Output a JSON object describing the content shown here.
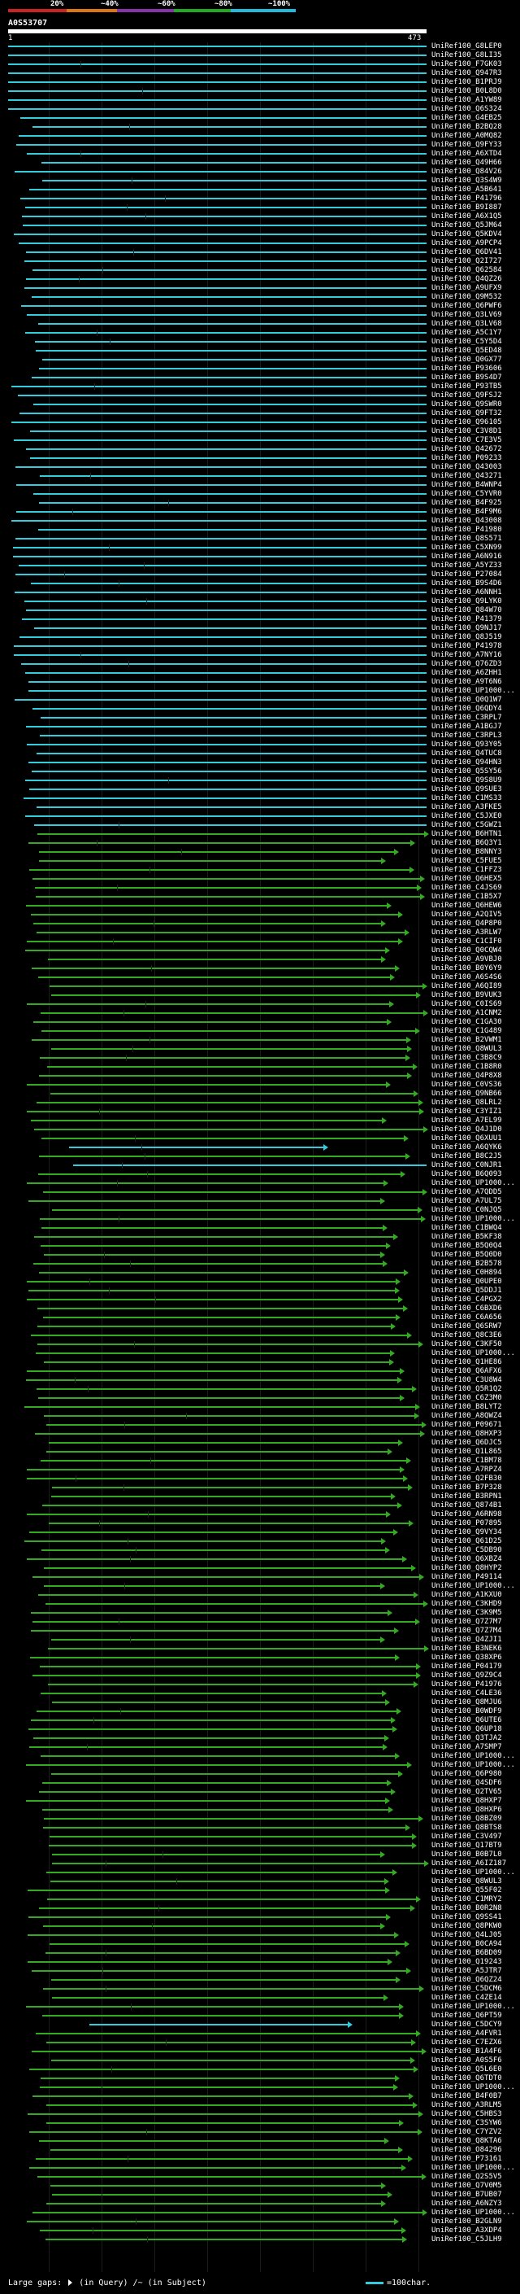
{
  "header": {
    "scale_ticks": [
      "20%",
      "~40%",
      "~60%",
      "~80%",
      "~100%"
    ],
    "scale_colors": [
      "#cc2222",
      "#dd7711",
      "#8833aa",
      "#22aa22",
      "#22bbdd"
    ],
    "query_title": "A0S53707",
    "query_start": "1",
    "query_end": "473"
  },
  "legend": {
    "large_gaps_label": "Large gaps:",
    "in_query_label": "(in Query)",
    "separator": "/~",
    "in_subject_label": "(in Subject)",
    "scale_label": "=100char."
  },
  "colors": {
    "cyan": "#33ccdd",
    "green": "#33aa22",
    "bright_green": "#44dd22"
  },
  "hits": [
    "UniRef100_G8LEP0",
    "UniRef100_G8LI35",
    "UniRef100_F7GK03",
    "UniRef100_Q947R3",
    "UniRef100_B1PRJ9",
    "UniRef100_B0L8D0",
    "UniRef100_A1YW89",
    "UniRef100_Q6S324",
    "UniRef100_G4EB25",
    "UniRef100_B2BQ28",
    "UniRef100_A0MQ82",
    "UniRef100_Q9FY33",
    "UniRef100_A6XTD4",
    "UniRef100_Q49H66",
    "UniRef100_Q84V26",
    "UniRef100_Q3S4W9",
    "UniRef100_A5B641",
    "UniRef100_P41796",
    "UniRef100_B9I887",
    "UniRef100_A6X1Q5",
    "UniRef100_Q5JM64",
    "UniRef100_Q5KDV4",
    "UniRef100_A9PCP4",
    "UniRef100_Q6DV41",
    "UniRef100_Q2I727",
    "UniRef100_Q62584",
    "UniRef100_Q4QZ26",
    "UniRef100_A9UFX9",
    "UniRef100_Q9M532",
    "UniRef100_Q6PWF6",
    "UniRef100_Q3LV69",
    "UniRef100_Q3LV68",
    "UniRef100_A5C1Y7",
    "UniRef100_C5Y5D4",
    "UniRef100_Q5ED48",
    "UniRef100_Q0GX77",
    "UniRef100_P93606",
    "UniRef100_B9S4D7",
    "UniRef100_P93TB5",
    "UniRef100_Q9FSJ2",
    "UniRef100_Q9SWR0",
    "UniRef100_Q9FT32",
    "UniRef100_Q96105",
    "UniRef100_C3V8D1",
    "UniRef100_C7E3V5",
    "UniRef100_Q42672",
    "UniRef100_P09233",
    "UniRef100_Q43003",
    "UniRef100_Q43271",
    "UniRef100_B4WNP4",
    "UniRef100_C5YVR0",
    "UniRef100_B4F925",
    "UniRef100_B4F9M6",
    "UniRef100_Q43008",
    "UniRef100_P41980",
    "UniRef100_Q8S571",
    "UniRef100_C5XN99",
    "UniRef100_A6N916",
    "UniRef100_A5YZ33",
    "UniRef100_P27084",
    "UniRef100_B9S4D6",
    "UniRef100_A6NNH1",
    "UniRef100_Q9LYK0",
    "UniRef100_Q84W70",
    "UniRef100_P41379",
    "UniRef100_Q9NJ17",
    "UniRef100_Q8J519",
    "UniRef100_P41978",
    "UniRef100_A7NY16",
    "UniRef100_Q76ZD3",
    "UniRef100_A6ZHH1",
    "UniRef100_A9T6N6",
    "UniRef100_UP1000...",
    "UniRef100_Q0Q1W7",
    "UniRef100_Q6QDY4",
    "UniRef100_C3RPL7",
    "UniRef100_A1BGJ7",
    "UniRef100_C3RPL3",
    "UniRef100_Q93Y05",
    "UniRef100_Q4TUC8",
    "UniRef100_Q94HN3",
    "UniRef100_Q5SY56",
    "UniRef100_Q9S8U9",
    "UniRef100_Q9SUE3",
    "UniRef100_C1MS33",
    "UniRef100_A3FKE5",
    "UniRef100_C5JXE0",
    "UniRef100_C5GWZ1",
    "UniRef100_B6HTN1",
    "UniRef100_B6Q3Y1",
    "UniRef100_B8NNY3",
    "UniRef100_C5FUE5",
    "UniRef100_C1FFZ3",
    "UniRef100_Q6HEX5",
    "UniRef100_C4JS69",
    "UniRef100_C1B5X7",
    "UniRef100_Q6HEW6",
    "UniRef100_A2QIV5",
    "UniRef100_Q4P8P0",
    "UniRef100_A3RLW7",
    "UniRef100_C1CIF0",
    "UniRef100_Q0CQW4",
    "UniRef100_A9VBJ0",
    "UniRef100_B0Y6Y9",
    "UniRef100_A6S4S6",
    "UniRef100_A6QI89",
    "UniRef100_B9VUK3",
    "UniRef100_C0IS69",
    "UniRef100_A1CNM2",
    "UniRef100_C1GA30",
    "UniRef100_C1G489",
    "UniRef100_B2VWM1",
    "UniRef100_Q8WUL3",
    "UniRef100_C3B8C9",
    "UniRef100_C1B8R0",
    "UniRef100_Q4P8X8",
    "UniRef100_C0VS36",
    "UniRef100_Q9NB66",
    "UniRef100_Q8LRL2",
    "UniRef100_C3YIZ1",
    "UniRef100_A7EL99",
    "UniRef100_Q4J1D0",
    "UniRef100_Q6XUU1",
    "UniRef100_A6QYK6",
    "UniRef100_B8C2J5",
    "UniRef100_C0NJR1",
    "UniRef100_B6Q093",
    "UniRef100_UP1000...",
    "UniRef100_A7QDD5",
    "UniRef100_A7UL75",
    "UniRef100_C0NJQ5",
    "UniRef100_UP1000...",
    "UniRef100_C1BWQ4",
    "UniRef100_B5KF38",
    "UniRef100_B5Q0Q4",
    "UniRef100_B5Q0D0",
    "UniRef100_B2B578",
    "UniRef100_C0H894",
    "UniRef100_Q0UPE0",
    "UniRef100_Q5DDJ1",
    "UniRef100_C4PGX2",
    "UniRef100_C6BXD6",
    "UniRef100_C6A656",
    "UniRef100_Q6SRW7",
    "UniRef100_Q8C3E6",
    "UniRef100_C3KF50",
    "UniRef100_UP1000...",
    "UniRef100_Q1HE86",
    "UniRef100_Q6AFX6",
    "UniRef100_C3U8W4",
    "UniRef100_Q5R1Q2",
    "UniRef100_C6Z3M0",
    "UniRef100_B8LYT2",
    "UniRef100_A8QWZ4",
    "UniRef100_P09671",
    "UniRef100_Q8HXP3",
    "UniRef100_Q6DJC5",
    "UniRef100_Q1L865",
    "UniRef100_C1BM78",
    "UniRef100_A7RPZ4",
    "UniRef100_Q2FB30",
    "UniRef100_B7P328",
    "UniRef100_B3RPN1",
    "UniRef100_Q874B1",
    "UniRef100_A6RN98",
    "UniRef100_P07895",
    "UniRef100_Q9VY34",
    "UniRef100_Q61D25",
    "UniRef100_C5DB90",
    "UniRef100_Q6XBZ4",
    "UniRef100_Q8HYP2",
    "UniRef100_P49114",
    "UniRef100_UP1000...",
    "UniRef100_A1KXU0",
    "UniRef100_C3KHD9",
    "UniRef100_C3K9M5",
    "UniRef100_Q7Z7M7",
    "UniRef100_Q7Z7M4",
    "UniRef100_Q4ZJI1",
    "UniRef100_B3NEK6",
    "UniRef100_Q38XP6",
    "UniRef100_P04179",
    "UniRef100_Q9Z9C4",
    "UniRef100_P41976",
    "UniRef100_C4LE36",
    "UniRef100_Q8MJU6",
    "UniRef100_B0WDF9",
    "UniRef100_Q6UTE6",
    "UniRef100_Q6UP18",
    "UniRef100_Q3TJA2",
    "UniRef100_A7SMP7",
    "UniRef100_UP1000...",
    "UniRef100_UP1000...",
    "UniRef100_Q6P980",
    "UniRef100_Q4SDF6",
    "UniRef100_Q2TV65",
    "UniRef100_Q8HXP7",
    "UniRef100_Q8HXP6",
    "UniRef100_Q8BZ09",
    "UniRef100_Q8BTS8",
    "UniRef100_C3V497",
    "UniRef100_Q17BT9",
    "UniRef100_B0B7L0",
    "UniRef100_A6IZ187",
    "UniRef100_UP1000...",
    "UniRef100_Q8WUL3",
    "UniRef100_Q55F02",
    "UniRef100_C1MRY2",
    "UniRef100_B0R2N8",
    "UniRef100_Q9SS41",
    "UniRef100_Q8PKW0",
    "UniRef100_Q4LJ05",
    "UniRef100_B0CA94",
    "UniRef100_B6BD09",
    "UniRef100_Q19243",
    "UniRef100_A5JTR7",
    "UniRef100_Q6QZ24",
    "UniRef100_C5DCM6",
    "UniRef100_C4ZE14",
    "UniRef100_UP1000...",
    "UniRef100_Q6PT59",
    "UniRef100_C5DCY9",
    "UniRef100_A4FVR1",
    "UniRef100_C7EZX6",
    "UniRef100_B1A4F6",
    "UniRef100_A0S5F6",
    "UniRef100_Q5L6E0",
    "UniRef100_Q6TDT0",
    "UniRef100_UP1000...",
    "UniRef100_B4F0B7",
    "UniRef100_A3RLM5",
    "UniRef100_C5HBS3",
    "UniRef100_C3SYW6",
    "UniRef100_C7YZV2",
    "UniRef100_Q8KTA6",
    "UniRef100_O84296",
    "UniRef100_P73161",
    "UniRef100_UP1000...",
    "UniRef100_Q2S5V5",
    "UniRef100_Q7V0M5",
    "UniRef100_B7UB07",
    "UniRef100_A6NZY3",
    "UniRef100_UP1000...",
    "UniRef100_B2GLN9",
    "UniRef100_A3XDP4",
    "UniRef100_C5JLH9"
  ]
}
